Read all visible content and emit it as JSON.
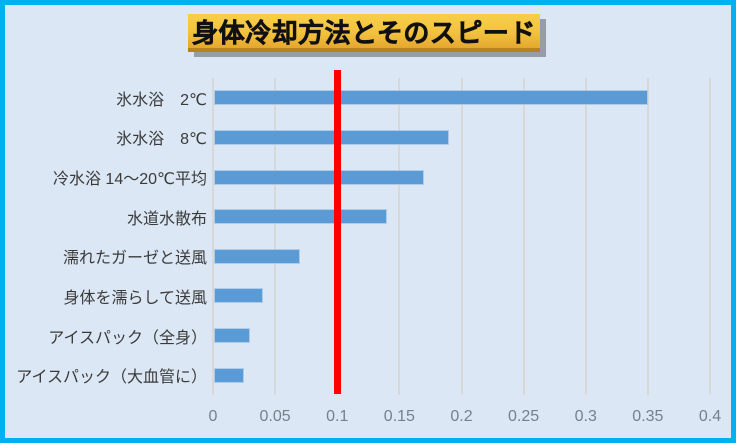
{
  "title": "身体冷却方法とそのスピード",
  "chart_data": {
    "type": "bar",
    "orientation": "horizontal",
    "title": "身体冷却方法とそのスピード",
    "categories": [
      "氷水浴　2℃",
      "氷水浴　8℃",
      "冷水浴 14～20℃平均",
      "水道水散布",
      "濡れたガーゼと送風",
      "身体を濡らして送風",
      "アイスパック（全身）",
      "アイスパック（大血管に）"
    ],
    "values": [
      0.35,
      0.19,
      0.17,
      0.14,
      0.07,
      0.04,
      0.03,
      0.025
    ],
    "xlabel": "",
    "ylabel": "",
    "xlim": [
      0,
      0.4
    ],
    "xtick_labels": [
      "0",
      "0.05",
      "0.1",
      "0.15",
      "0.2",
      "0.25",
      "0.3",
      "0.35",
      "0.4"
    ],
    "xtick_values": [
      0,
      0.05,
      0.1,
      0.15,
      0.2,
      0.25,
      0.3,
      0.35,
      0.4
    ],
    "grid": true,
    "legend": false,
    "reference_line": {
      "x": 0.1,
      "color": "#FE0000"
    }
  },
  "colors": {
    "outer_border": "#00B0F0",
    "background": "#DBE7F4",
    "bar": "#5B9BD5",
    "gridline": "#D8D8D8",
    "reference_line": "#FE0000",
    "title_background": "#F2C23E",
    "title_text": "#111111",
    "category_text": "#3A3A3A",
    "tick_text": "#76808C"
  }
}
